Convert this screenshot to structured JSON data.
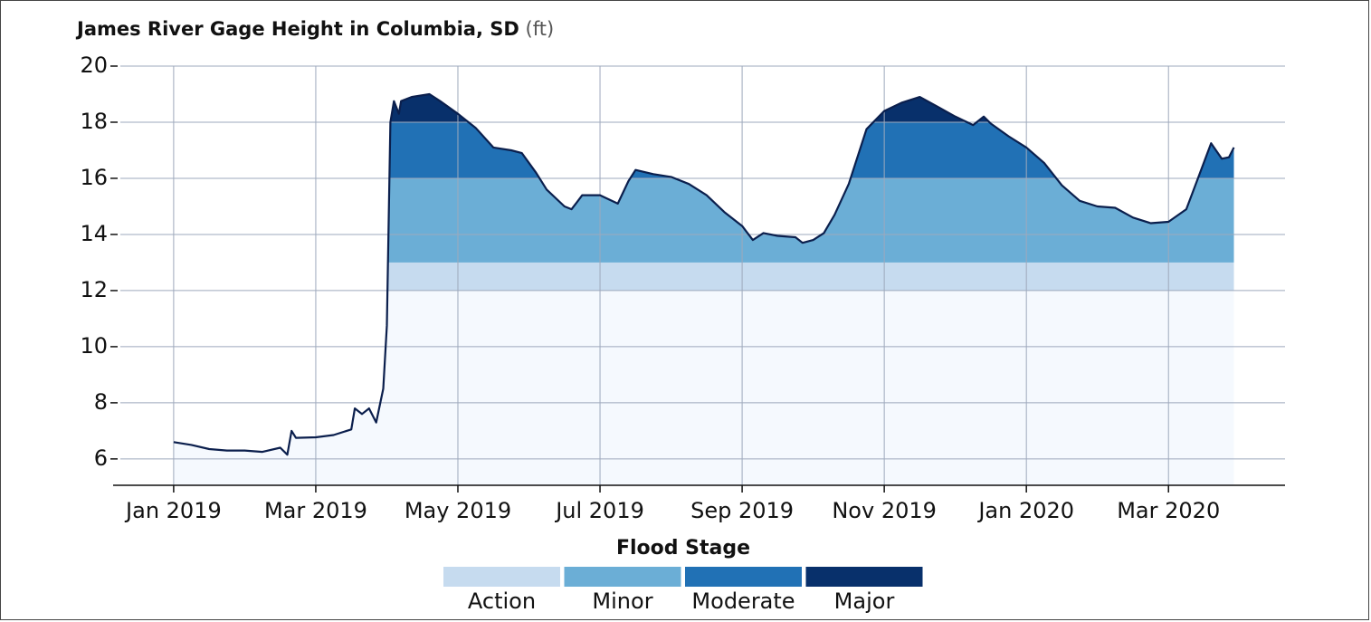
{
  "chart_data": {
    "type": "area",
    "title": "James River Gage Height in Columbia, SD",
    "unit": "(ft)",
    "x": [
      0,
      0.25,
      0.5,
      0.75,
      1.0,
      1.25,
      1.5,
      1.6,
      1.66,
      1.72,
      2.0,
      2.25,
      2.5,
      2.55,
      2.65,
      2.75,
      2.85,
      2.95,
      3.0,
      3.05,
      3.1,
      3.17,
      3.2,
      3.35,
      3.6,
      3.75,
      4.0,
      4.25,
      4.5,
      4.75,
      4.9,
      5.1,
      5.25,
      5.5,
      5.6,
      5.75,
      6.0,
      6.25,
      6.4,
      6.5,
      6.75,
      7.0,
      7.25,
      7.5,
      7.75,
      8.0,
      8.15,
      8.3,
      8.5,
      8.75,
      8.85,
      9.0,
      9.15,
      9.3,
      9.5,
      9.75,
      10.0,
      10.25,
      10.5,
      10.75,
      11.0,
      11.25,
      11.4,
      11.5,
      11.75,
      12.0,
      12.25,
      12.5,
      12.75,
      13.0,
      13.25,
      13.5,
      13.75,
      14.0,
      14.25,
      14.4,
      14.6,
      14.75,
      14.85,
      14.92
    ],
    "values": [
      6.6,
      6.5,
      6.35,
      6.3,
      6.3,
      6.25,
      6.4,
      6.15,
      7.0,
      6.75,
      6.77,
      6.85,
      7.05,
      7.8,
      7.6,
      7.8,
      7.3,
      8.5,
      10.75,
      18.0,
      18.75,
      18.3,
      18.75,
      18.9,
      19.0,
      18.75,
      18.3,
      17.8,
      17.1,
      17.0,
      16.9,
      16.2,
      15.6,
      15.0,
      14.9,
      15.4,
      15.4,
      15.1,
      15.9,
      16.3,
      16.15,
      16.05,
      15.8,
      15.4,
      14.8,
      14.3,
      13.8,
      14.05,
      13.95,
      13.9,
      13.7,
      13.8,
      14.05,
      14.7,
      15.8,
      17.75,
      18.4,
      18.7,
      18.9,
      18.55,
      18.2,
      17.9,
      18.2,
      17.95,
      17.5,
      17.1,
      16.55,
      15.75,
      15.2,
      15.0,
      14.95,
      14.6,
      14.4,
      14.45,
      14.9,
      15.9,
      17.25,
      16.7,
      16.75,
      17.1
    ],
    "color": "#0b1f4d",
    "base_color": "#f5f9fe",
    "xlim": [
      -0.75,
      15.64
    ],
    "ylim": [
      5.06,
      20
    ],
    "xticks": [
      {
        "value": 0,
        "label": "Jan 2019"
      },
      {
        "value": 2,
        "label": "Mar 2019"
      },
      {
        "value": 4,
        "label": "May 2019"
      },
      {
        "value": 6,
        "label": "Jul 2019"
      },
      {
        "value": 8,
        "label": "Sep 2019"
      },
      {
        "value": 10,
        "label": "Nov 2019"
      },
      {
        "value": 12,
        "label": "Jan 2020"
      },
      {
        "value": 14,
        "label": "Mar 2020"
      }
    ],
    "yticks": [
      6,
      8,
      10,
      12,
      14,
      16,
      18,
      20
    ],
    "grid": true,
    "legend_title": "Flood Stage",
    "flood_stages": [
      {
        "name": "Action",
        "threshold": 12,
        "color": "#c6dbef"
      },
      {
        "name": "Minor",
        "threshold": 13,
        "color": "#6baed6"
      },
      {
        "name": "Moderate",
        "threshold": 16,
        "color": "#2171b5"
      },
      {
        "name": "Major",
        "threshold": 18,
        "color": "#08306b"
      }
    ]
  }
}
